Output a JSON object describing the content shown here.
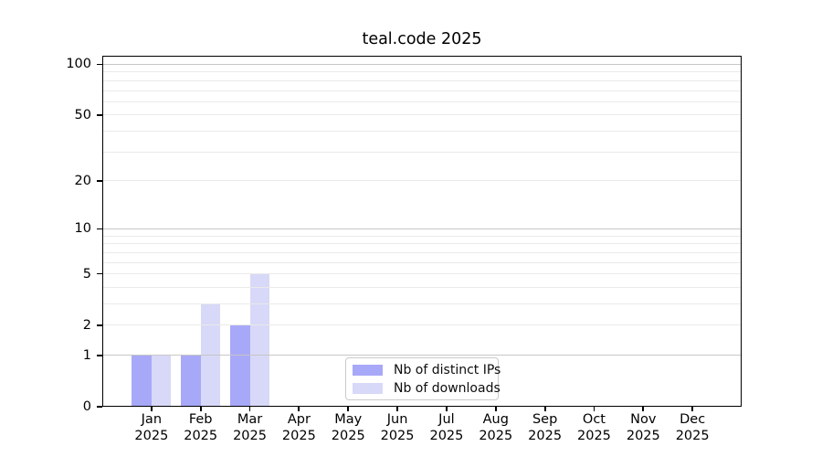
{
  "chart_data": {
    "type": "bar",
    "title": "teal.code 2025",
    "y_scale": "log1p",
    "ylim": [
      0,
      113
    ],
    "grid": true,
    "legend_position": "lower center",
    "y_tick_values": [
      0,
      1,
      2,
      5,
      10,
      20,
      50,
      100
    ],
    "y_tick_labels": [
      "0",
      "1",
      "2",
      "5",
      "10",
      "20",
      "50",
      "100"
    ],
    "y_major_gridlines": [
      1,
      10,
      100
    ],
    "y_minor_gridlines": [
      2,
      3,
      4,
      5,
      6,
      7,
      8,
      9,
      20,
      30,
      40,
      50,
      60,
      70,
      80,
      90
    ],
    "x_labels": [
      {
        "line1": "Jan",
        "line2": "2025"
      },
      {
        "line1": "Feb",
        "line2": "2025"
      },
      {
        "line1": "Mar",
        "line2": "2025"
      },
      {
        "line1": "Apr",
        "line2": "2025"
      },
      {
        "line1": "May",
        "line2": "2025"
      },
      {
        "line1": "Jun",
        "line2": "2025"
      },
      {
        "line1": "Jul",
        "line2": "2025"
      },
      {
        "line1": "Aug",
        "line2": "2025"
      },
      {
        "line1": "Sep",
        "line2": "2025"
      },
      {
        "line1": "Oct",
        "line2": "2025"
      },
      {
        "line1": "Nov",
        "line2": "2025"
      },
      {
        "line1": "Dec",
        "line2": "2025"
      }
    ],
    "series": [
      {
        "name": "Nb of distinct IPs",
        "color": "#a8a8f8",
        "values": [
          1,
          1,
          2,
          0,
          0,
          0,
          0,
          0,
          0,
          0,
          0,
          0
        ]
      },
      {
        "name": "Nb of downloads",
        "color": "#d8d8f8",
        "values": [
          1,
          3,
          5,
          0,
          0,
          0,
          0,
          0,
          0,
          0,
          0,
          0
        ]
      }
    ]
  },
  "colors": {
    "major_gridline": "#c7c7c7",
    "minor_gridline": "#eaeaea",
    "axis": "#000000",
    "background": "#ffffff"
  }
}
